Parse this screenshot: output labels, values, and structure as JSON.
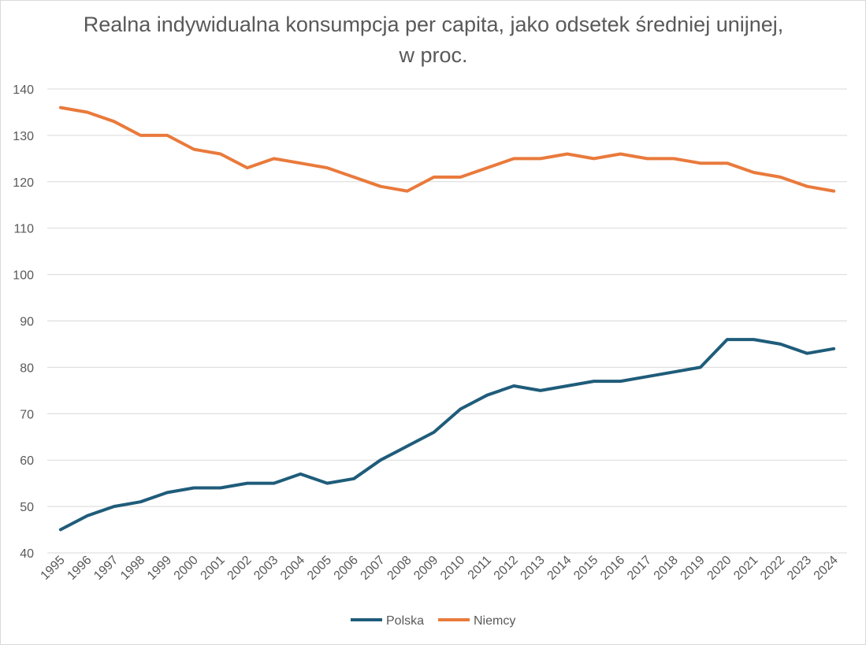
{
  "chart_data": {
    "type": "line",
    "title_line1": "Realna indywidualna konsumpcja per capita, jako odsetek średniej unijnej,",
    "title_line2": "w proc.",
    "x": [
      "1995",
      "1996",
      "1997",
      "1998",
      "1999",
      "2000",
      "2001",
      "2002",
      "2003",
      "2004",
      "2005",
      "2006",
      "2007",
      "2008",
      "2009",
      "2010",
      "2011",
      "2012",
      "2013",
      "2014",
      "2015",
      "2016",
      "2017",
      "2018",
      "2019",
      "2020",
      "2021",
      "2022",
      "2023",
      "2024"
    ],
    "ylim": [
      40,
      140
    ],
    "yticks": [
      40,
      50,
      60,
      70,
      80,
      90,
      100,
      110,
      120,
      130,
      140
    ],
    "grid": true,
    "legend_position": "bottom",
    "series": [
      {
        "name": "Polska",
        "color": "#1f5c7a",
        "values": [
          45,
          48,
          50,
          51,
          53,
          54,
          54,
          55,
          55,
          57,
          55,
          56,
          60,
          63,
          66,
          71,
          74,
          76,
          75,
          76,
          77,
          77,
          78,
          79,
          80,
          86,
          86,
          85,
          83,
          84
        ]
      },
      {
        "name": "Niemcy",
        "color": "#e97a3c",
        "values": [
          136,
          135,
          133,
          130,
          130,
          127,
          126,
          123,
          125,
          124,
          123,
          121,
          119,
          118,
          121,
          121,
          123,
          125,
          125,
          126,
          125,
          126,
          125,
          125,
          124,
          124,
          122,
          121,
          119,
          118
        ]
      }
    ]
  }
}
